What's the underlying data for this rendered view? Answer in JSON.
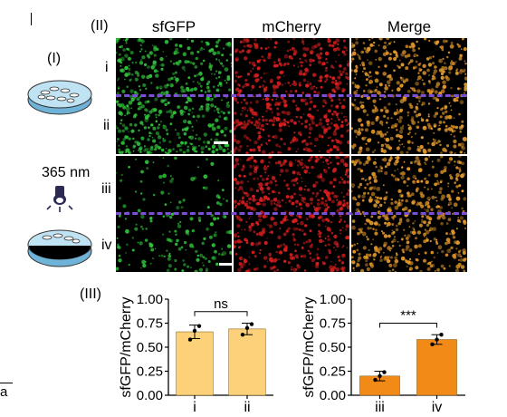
{
  "figure": {
    "panel_I_label": "(I)",
    "panel_II_label": "(II)",
    "panel_III_label": "(III)",
    "uv_label": "365 nm",
    "corner_mark": "a",
    "columns": [
      "sfGFP",
      "mCherry",
      "Merge"
    ],
    "rows": [
      "i",
      "ii",
      "iii",
      "iv"
    ],
    "channel_colors": {
      "sfGFP": "#2fbf3a",
      "mCherry": "#d81e1e",
      "Merge": "#e0962a"
    },
    "divider_color": "#7b4fd6"
  },
  "chart_data": [
    {
      "type": "bar",
      "categories": [
        "i",
        "ii"
      ],
      "values": [
        0.66,
        0.69
      ],
      "errors": [
        0.07,
        0.06
      ],
      "points": [
        [
          0.58,
          0.67,
          0.72
        ],
        [
          0.63,
          0.7,
          0.74
        ]
      ],
      "ylabel": "sfGFP/mCherry",
      "ylim": [
        0,
        1.0
      ],
      "yticks": [
        "0.00",
        "0.25",
        "0.50",
        "0.75",
        "1.00"
      ],
      "significance": "ns",
      "bar_color": "#fdd17a"
    },
    {
      "type": "bar",
      "categories": [
        "iii",
        "iv"
      ],
      "values": [
        0.2,
        0.58
      ],
      "errors": [
        0.05,
        0.05
      ],
      "points": [
        [
          0.16,
          0.2,
          0.24
        ],
        [
          0.53,
          0.58,
          0.63
        ]
      ],
      "ylabel": "sfGFP/mCherry",
      "ylim": [
        0,
        1.0
      ],
      "yticks": [
        "0.00",
        "0.25",
        "0.50",
        "0.75",
        "1.00"
      ],
      "significance": "***",
      "bar_color": "#f28a17"
    }
  ]
}
